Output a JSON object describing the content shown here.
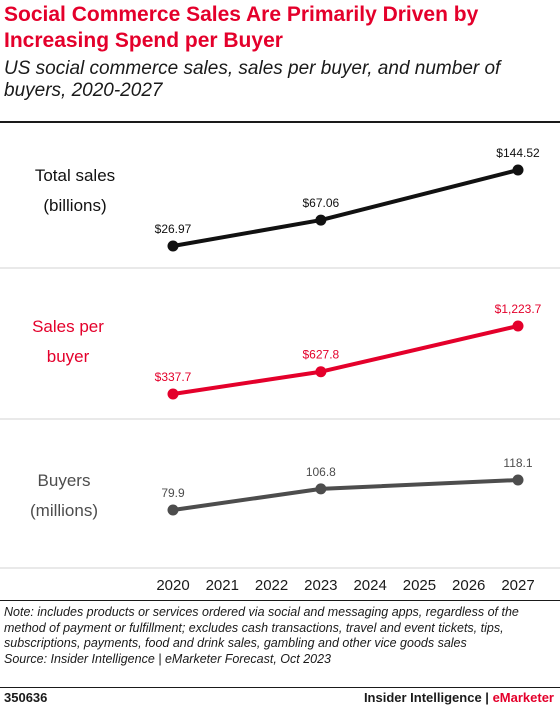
{
  "header": {
    "title": "Social Commerce Sales Are Primarily Driven by Increasing Spend per Buyer",
    "subtitle": "US social commerce sales, sales per buyer, and number of buyers, 2020-2027"
  },
  "colors": {
    "accent": "#e4002b",
    "total_sales": "#111111",
    "sales_per_buyer": "#e4002b",
    "buyers": "#4d4d4d",
    "gridline": "#d3d3d3"
  },
  "chart_data": {
    "type": "line",
    "x": [
      "2020",
      "2021",
      "2022",
      "2023",
      "2024",
      "2025",
      "2026",
      "2027"
    ],
    "grid": true,
    "panels": [
      {
        "label_lines": [
          "Total sales",
          "(billions)"
        ],
        "color": "#111111",
        "points": [
          {
            "x": "2020",
            "y": 26.97,
            "label": "$26.97"
          },
          {
            "x": "2023",
            "y": 67.06,
            "label": "$67.06"
          },
          {
            "x": "2027",
            "y": 144.52,
            "label": "$144.52"
          }
        ]
      },
      {
        "label_lines": [
          "Sales per",
          "buyer"
        ],
        "color": "#e4002b",
        "points": [
          {
            "x": "2020",
            "y": 337.7,
            "label": "$337.7"
          },
          {
            "x": "2023",
            "y": 627.8,
            "label": "$627.8"
          },
          {
            "x": "2027",
            "y": 1223.7,
            "label": "$1,223.7"
          }
        ]
      },
      {
        "label_lines": [
          "Buyers",
          "(millions)"
        ],
        "color": "#4d4d4d",
        "points": [
          {
            "x": "2020",
            "y": 79.9,
            "label": "79.9"
          },
          {
            "x": "2023",
            "y": 106.8,
            "label": "106.8"
          },
          {
            "x": "2027",
            "y": 118.1,
            "label": "118.1"
          }
        ]
      }
    ]
  },
  "footer": {
    "note": "Note: includes products or services ordered via social and messaging apps, regardless of the method of payment or fulfillment; excludes cash transactions, travel and event tickets, tips, subscriptions, payments, food and drink sales, gambling and other vice goods sales",
    "source": "Source: Insider Intelligence | eMarketer Forecast, Oct 2023",
    "chart_id": "350636",
    "brand_main": "Insider Intelligence | ",
    "brand_accent": "eMarketer"
  }
}
